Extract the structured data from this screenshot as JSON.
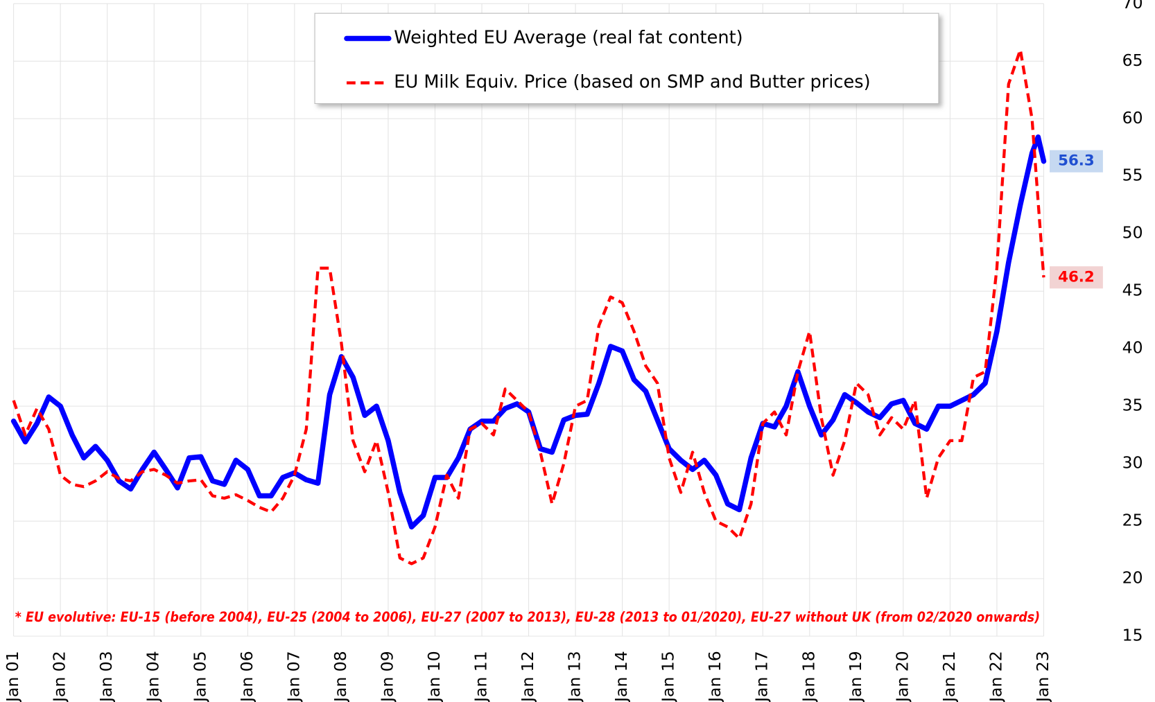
{
  "chart_data": {
    "type": "line",
    "legend": [
      "Weighted EU Average (real fat content)",
      "EU Milk Equiv. Price (based on SMP and Butter prices)"
    ],
    "note": "* EU evolutive: EU-15 (before  2004), EU-25 (2004 to 2006), EU-27 (2007 to 2013), EU-28 (2013 to 01/2020), EU-27 without  UK (from  02/2020 onwards)",
    "xlim": [
      2001,
      2023
    ],
    "xticks": [
      {
        "value": 2001,
        "label": "Jan 01"
      },
      {
        "value": 2002,
        "label": "Jan 02"
      },
      {
        "value": 2003,
        "label": "Jan 03"
      },
      {
        "value": 2004,
        "label": "Jan 04"
      },
      {
        "value": 2005,
        "label": "Jan 05"
      },
      {
        "value": 2006,
        "label": "Jan 06"
      },
      {
        "value": 2007,
        "label": "Jan 07"
      },
      {
        "value": 2008,
        "label": "Jan 08"
      },
      {
        "value": 2009,
        "label": "Jan 09"
      },
      {
        "value": 2010,
        "label": "Jan 10"
      },
      {
        "value": 2011,
        "label": "Jan 11"
      },
      {
        "value": 2012,
        "label": "Jan 12"
      },
      {
        "value": 2013,
        "label": "Jan 13"
      },
      {
        "value": 2014,
        "label": "Jan 14"
      },
      {
        "value": 2015,
        "label": "Jan 15"
      },
      {
        "value": 2016,
        "label": "Jan 16"
      },
      {
        "value": 2017,
        "label": "Jan 17"
      },
      {
        "value": 2018,
        "label": "Jan 18"
      },
      {
        "value": 2019,
        "label": "Jan 19"
      },
      {
        "value": 2020,
        "label": "Jan 20"
      },
      {
        "value": 2021,
        "label": "Jan 21"
      },
      {
        "value": 2022,
        "label": "Jan 22"
      },
      {
        "value": 2023,
        "label": "Jan 23"
      }
    ],
    "ylim": [
      15,
      70
    ],
    "yticks": [
      15,
      20,
      25,
      30,
      35,
      40,
      45,
      50,
      55,
      60,
      65,
      70
    ],
    "y_axis_side": "right",
    "grid": true,
    "series": [
      {
        "name": "Weighted EU Average (real fat content)",
        "color": "#0000ff",
        "dash": "solid",
        "end_label": "56.3",
        "end_label_bg": "#c6d9f1",
        "end_label_color": "#1f4fd1",
        "x": [
          2001,
          2001.25,
          2001.5,
          2001.75,
          2002,
          2002.25,
          2002.5,
          2002.75,
          2003,
          2003.25,
          2003.5,
          2003.75,
          2004,
          2004.25,
          2004.5,
          2004.75,
          2005,
          2005.25,
          2005.5,
          2005.75,
          2006,
          2006.25,
          2006.5,
          2006.75,
          2007,
          2007.25,
          2007.5,
          2007.75,
          2008,
          2008.25,
          2008.5,
          2008.75,
          2009,
          2009.25,
          2009.5,
          2009.75,
          2010,
          2010.25,
          2010.5,
          2010.75,
          2011,
          2011.25,
          2011.5,
          2011.75,
          2012,
          2012.25,
          2012.5,
          2012.75,
          2013,
          2013.25,
          2013.5,
          2013.75,
          2014,
          2014.25,
          2014.5,
          2014.75,
          2015,
          2015.25,
          2015.5,
          2015.75,
          2016,
          2016.25,
          2016.5,
          2016.75,
          2017,
          2017.25,
          2017.5,
          2017.75,
          2018,
          2018.25,
          2018.5,
          2018.75,
          2019,
          2019.25,
          2019.5,
          2019.75,
          2020,
          2020.25,
          2020.5,
          2020.75,
          2021,
          2021.25,
          2021.5,
          2021.75,
          2022,
          2022.25,
          2022.5,
          2022.75,
          2022.88,
          2023
        ],
        "values": [
          33.7,
          31.9,
          33.5,
          35.8,
          35.0,
          32.5,
          30.5,
          31.5,
          30.3,
          28.5,
          27.8,
          29.5,
          31.0,
          29.5,
          27.9,
          30.5,
          30.6,
          28.5,
          28.2,
          30.3,
          29.5,
          27.2,
          27.2,
          28.8,
          29.2,
          28.6,
          28.3,
          36.0,
          39.3,
          37.5,
          34.2,
          35.0,
          32.0,
          27.5,
          24.5,
          25.5,
          28.8,
          28.8,
          30.5,
          33.0,
          33.7,
          33.7,
          34.8,
          35.2,
          34.5,
          31.3,
          31.0,
          33.8,
          34.2,
          34.3,
          37.0,
          40.2,
          39.8,
          37.3,
          36.3,
          33.8,
          31.3,
          30.3,
          29.5,
          30.3,
          29.0,
          26.5,
          26.0,
          30.5,
          33.5,
          33.2,
          35.0,
          38.0,
          35.0,
          32.5,
          33.8,
          36.0,
          35.3,
          34.5,
          34.0,
          35.2,
          35.5,
          33.5,
          33.0,
          35.0,
          35.0,
          35.5,
          36.0,
          37.0,
          41.5,
          47.5,
          52.5,
          57.0,
          58.4,
          56.3
        ]
      },
      {
        "name": "EU Milk Equiv. Price (based on SMP and Butter prices)",
        "color": "#ff0000",
        "dash": "dashed",
        "end_label": "46.2",
        "end_label_bg": "#f2d3d3",
        "end_label_color": "#ff0000",
        "x": [
          2001,
          2001.25,
          2001.5,
          2001.75,
          2002,
          2002.25,
          2002.5,
          2002.75,
          2003,
          2003.25,
          2003.5,
          2003.75,
          2004,
          2004.25,
          2004.5,
          2004.75,
          2005,
          2005.25,
          2005.5,
          2005.75,
          2006,
          2006.25,
          2006.5,
          2006.75,
          2007,
          2007.25,
          2007.5,
          2007.75,
          2008,
          2008.25,
          2008.5,
          2008.75,
          2009,
          2009.25,
          2009.5,
          2009.75,
          2010,
          2010.25,
          2010.5,
          2010.75,
          2011,
          2011.25,
          2011.5,
          2011.75,
          2012,
          2012.25,
          2012.5,
          2012.75,
          2013,
          2013.25,
          2013.5,
          2013.75,
          2014,
          2014.25,
          2014.5,
          2014.75,
          2015,
          2015.25,
          2015.5,
          2015.75,
          2016,
          2016.25,
          2016.5,
          2016.75,
          2017,
          2017.25,
          2017.5,
          2017.75,
          2018,
          2018.25,
          2018.5,
          2018.75,
          2019,
          2019.25,
          2019.5,
          2019.75,
          2020,
          2020.25,
          2020.5,
          2020.75,
          2021,
          2021.25,
          2021.5,
          2021.75,
          2022,
          2022.25,
          2022.5,
          2022.75,
          2023
        ],
        "values": [
          35.5,
          32.5,
          34.8,
          33.0,
          29.0,
          28.2,
          28.0,
          28.5,
          29.3,
          28.7,
          28.5,
          29.3,
          29.5,
          29.0,
          28.3,
          28.5,
          28.6,
          27.2,
          27.0,
          27.3,
          26.8,
          26.2,
          25.8,
          27.0,
          29.0,
          33.0,
          47.0,
          47.0,
          40.5,
          32.0,
          29.3,
          32.0,
          27.5,
          21.8,
          21.3,
          21.8,
          24.5,
          29.0,
          27.0,
          33.0,
          33.5,
          32.5,
          36.5,
          35.5,
          34.5,
          31.0,
          26.5,
          30.0,
          35.0,
          35.5,
          42.0,
          44.5,
          44.0,
          41.5,
          38.5,
          37.0,
          30.5,
          27.5,
          31.0,
          27.5,
          25.0,
          24.5,
          23.5,
          26.5,
          33.5,
          34.5,
          32.5,
          38.0,
          41.5,
          34.0,
          29.0,
          32.0,
          37.0,
          36.0,
          32.5,
          34.0,
          33.0,
          35.5,
          27.0,
          30.5,
          32.0,
          32.0,
          37.5,
          38.0,
          47.0,
          63.0,
          66.0,
          60.0,
          46.2
        ]
      }
    ]
  }
}
